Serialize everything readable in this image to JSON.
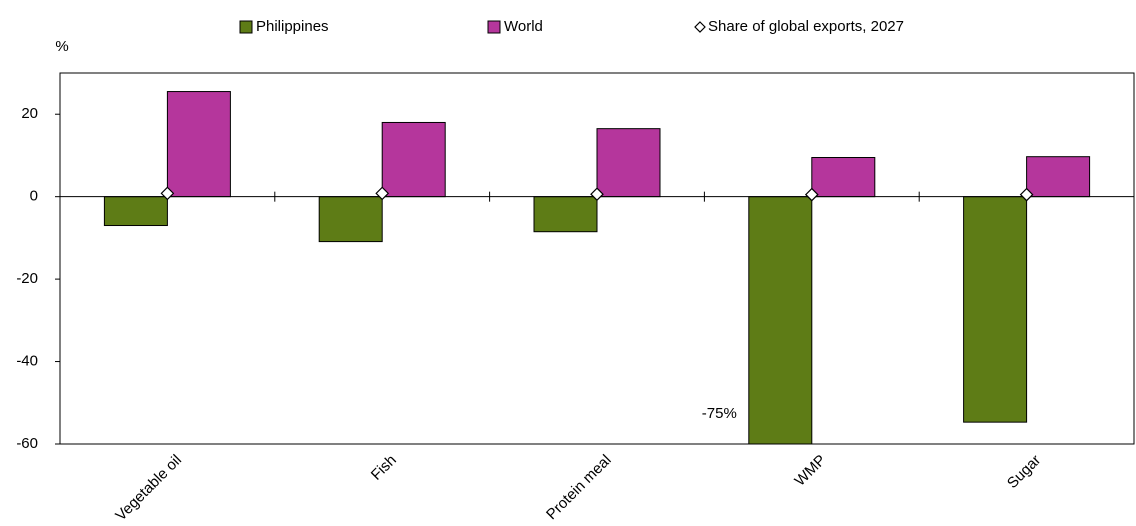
{
  "chart_data": {
    "type": "bar",
    "y_label": "%",
    "categories": [
      "Vegetable oil",
      "Fish",
      "Protein meal",
      "WMP",
      "Sugar"
    ],
    "series": [
      {
        "name": "Philippines",
        "color": "#5e7c16",
        "values": [
          -7,
          -10.9,
          -8.5,
          -75,
          -54.7
        ],
        "value_labels": [
          null,
          null,
          null,
          "-75%",
          null
        ]
      },
      {
        "name": "World",
        "color": "#b5369c",
        "values": [
          25.5,
          18,
          16.5,
          9.5,
          9.7
        ]
      },
      {
        "name": "Share of global exports, 2027",
        "type": "scatter",
        "marker": "diamond",
        "color": "#ffffff",
        "values": [
          0.8,
          0.8,
          0.6,
          0.5,
          0.5
        ]
      }
    ],
    "ylim": [
      -60,
      30
    ],
    "yticks": [
      -60,
      -40,
      -20,
      0,
      20
    ],
    "grid": false
  }
}
